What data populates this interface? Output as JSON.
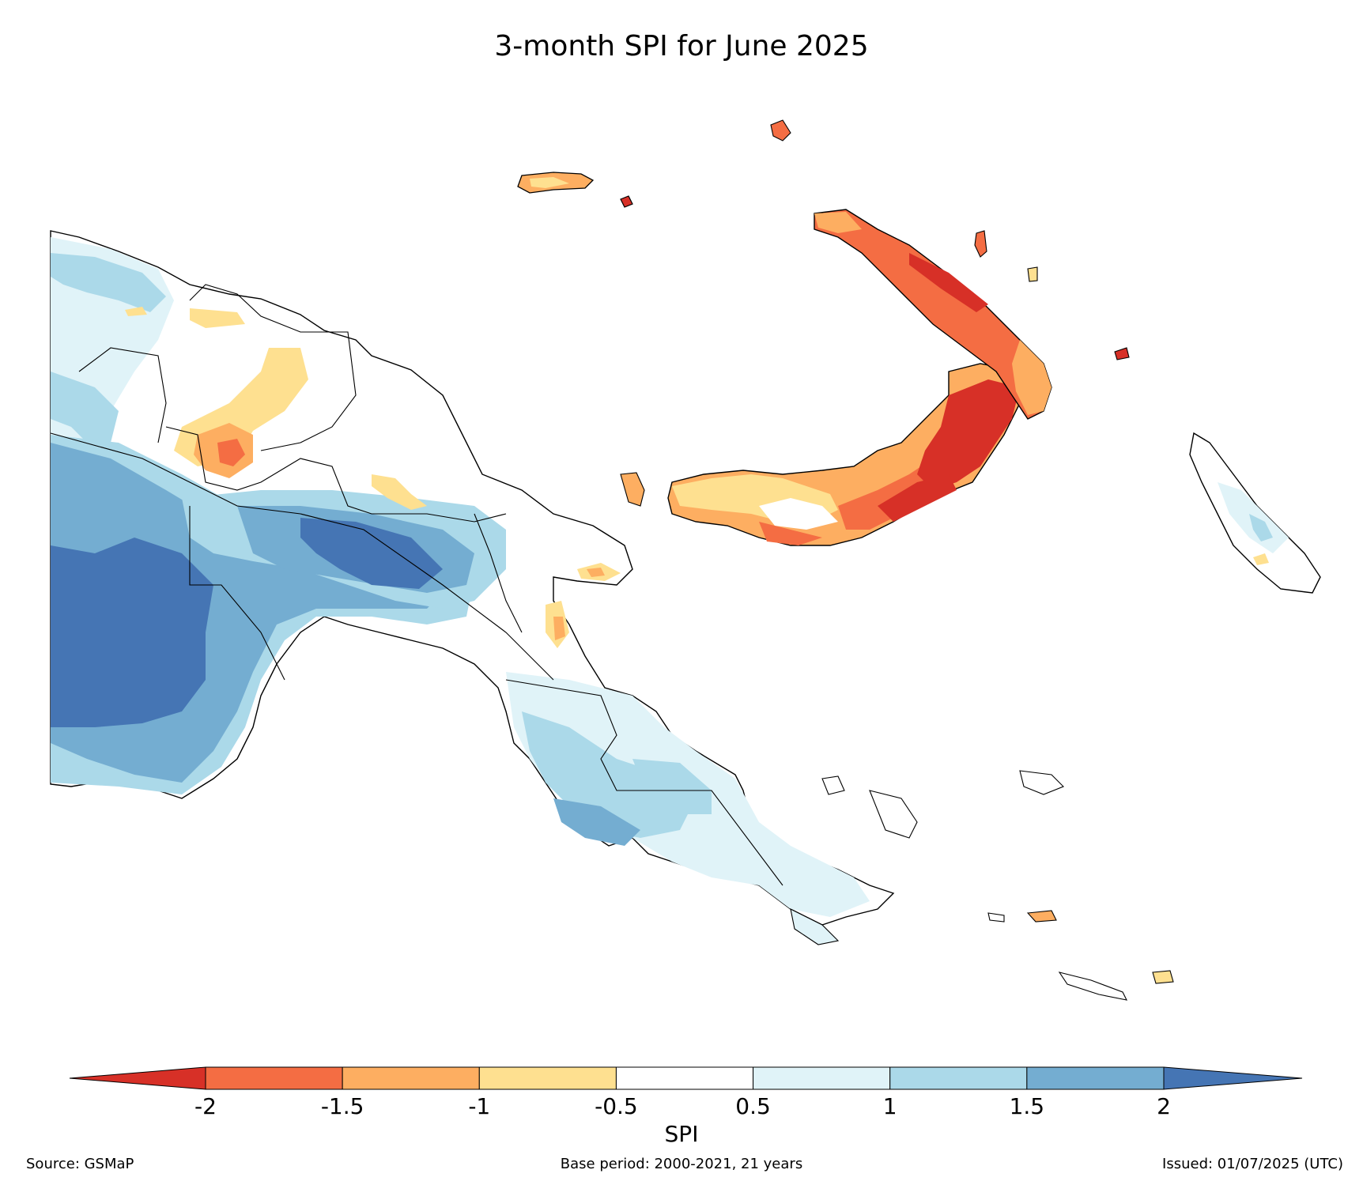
{
  "title": "3-month SPI for June 2025",
  "colorbar": {
    "label": "SPI",
    "ticks": [
      "-2",
      "-1.5",
      "-1",
      "-0.5",
      "0.5",
      "1",
      "1.5",
      "2"
    ],
    "colors": [
      "#d73027",
      "#f46d43",
      "#fdae61",
      "#fee090",
      "#ffffff",
      "#e0f3f8",
      "#abd9e9",
      "#74add1",
      "#4575b4"
    ],
    "extend": "both"
  },
  "footer": {
    "source": "Source: GSMaP",
    "base_period": "Base period: 2000-2021, 21 years",
    "issued": "Issued: 01/07/2025 (UTC)"
  },
  "map": {
    "region": "Papua New Guinea",
    "legend_placement": "bottom"
  }
}
